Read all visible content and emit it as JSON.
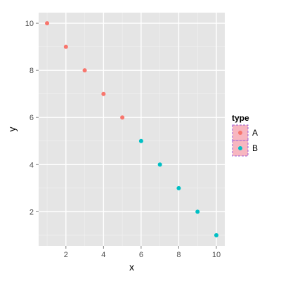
{
  "chart_data": {
    "type": "scatter",
    "title": "",
    "xlabel": "x",
    "ylabel": "y",
    "xlim": [
      0.55,
      10.45
    ],
    "ylim": [
      0.55,
      10.45
    ],
    "xticks": [
      2,
      4,
      6,
      8,
      10
    ],
    "yticks": [
      2,
      4,
      6,
      8,
      10
    ],
    "grid": true,
    "legend": {
      "title": "type",
      "placement": "right"
    },
    "series": [
      {
        "name": "A",
        "color": "#F8766D",
        "x": [
          1,
          2,
          3,
          4,
          5
        ],
        "y": [
          10,
          9,
          8,
          7,
          6
        ]
      },
      {
        "name": "B",
        "color": "#00BFC4",
        "x": [
          6,
          7,
          8,
          9,
          10
        ],
        "y": [
          5,
          4,
          3,
          2,
          1
        ]
      }
    ],
    "panel_background": "#E5E5E5",
    "legend_key_fill": "#F7B6C0",
    "legend_key_border": "#9B59D6"
  }
}
